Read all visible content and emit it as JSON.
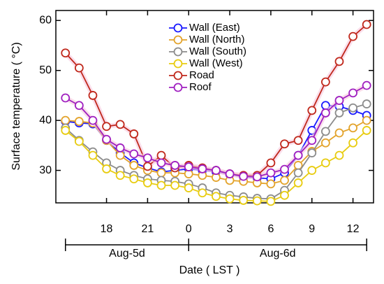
{
  "chart_data": {
    "type": "line",
    "x_label": "Date ( LST )",
    "y_label": "Surface temperature ( °C)",
    "x": [
      15,
      16,
      17,
      18,
      19,
      20,
      21,
      22,
      23,
      24,
      25,
      26,
      27,
      28,
      29,
      30,
      31,
      32,
      33,
      34,
      35,
      36,
      37
    ],
    "xlim": [
      14.3,
      37.5
    ],
    "xticks": [
      18,
      21,
      {
        "value": 24,
        "label": "0"
      },
      {
        "value": 27,
        "label": "3"
      },
      {
        "value": 30,
        "label": "6"
      },
      {
        "value": 33,
        "label": "9"
      },
      {
        "value": 36,
        "label": "12"
      }
    ],
    "ylim": [
      23.5,
      62
    ],
    "yticks": [
      30,
      40,
      50,
      60
    ],
    "legend": "top",
    "date_groups": [
      {
        "label": "Aug-5d"
      },
      {
        "label": "Aug-6d"
      }
    ],
    "series": [
      {
        "name": "Wall (East)",
        "color": "#1a1aff",
        "values": [
          39.8,
          39.5,
          39.3,
          36,
          33.5,
          31.5,
          30.5,
          29.7,
          30,
          30.3,
          30,
          29.7,
          29.2,
          28.7,
          28.5,
          28.3,
          29.5,
          33,
          38,
          43,
          42.8,
          42,
          41
        ]
      },
      {
        "name": "Wall (North)",
        "color": "#e3a32b",
        "values": [
          40,
          39.8,
          39.5,
          36,
          33,
          31,
          30,
          29.5,
          29.5,
          29.3,
          29,
          28.6,
          28,
          27.8,
          27.5,
          27.3,
          28,
          31,
          33.8,
          35.5,
          37.5,
          38.5,
          40
        ]
      },
      {
        "name": "Wall (South)",
        "color": "#8c8c8c",
        "values": [
          38.5,
          36,
          33.7,
          31.5,
          30,
          29,
          28.3,
          28,
          27.8,
          27.3,
          26.5,
          25.5,
          25,
          24.7,
          24.4,
          24.3,
          26,
          29.5,
          33.5,
          37.8,
          41.5,
          42.5,
          43.3
        ]
      },
      {
        "name": "Wall (West)",
        "color": "#e8cc10",
        "values": [
          38,
          35.8,
          33,
          30.3,
          29,
          28.3,
          27.5,
          27,
          27,
          26.5,
          25.5,
          24.8,
          24.3,
          24,
          23.9,
          23.8,
          25,
          27.5,
          30,
          31.5,
          33,
          35.5,
          38
        ]
      },
      {
        "name": "Road",
        "color": "#c0281c",
        "values": [
          53.5,
          50.5,
          45,
          38.8,
          39.2,
          37.3,
          30.8,
          33,
          30.5,
          31,
          30.5,
          30,
          29.3,
          29,
          29,
          31.5,
          35.3,
          36,
          42,
          47.7,
          51.8,
          56.8,
          59.2
        ]
      },
      {
        "name": "Roof",
        "color": "#a020c0",
        "values": [
          44.5,
          43,
          40,
          36.2,
          34.5,
          33.3,
          32.5,
          31.5,
          31,
          30.7,
          30.3,
          30,
          29.3,
          28.8,
          28.7,
          29.5,
          30.2,
          33,
          36,
          41.5,
          44,
          45.5,
          47
        ]
      }
    ]
  }
}
